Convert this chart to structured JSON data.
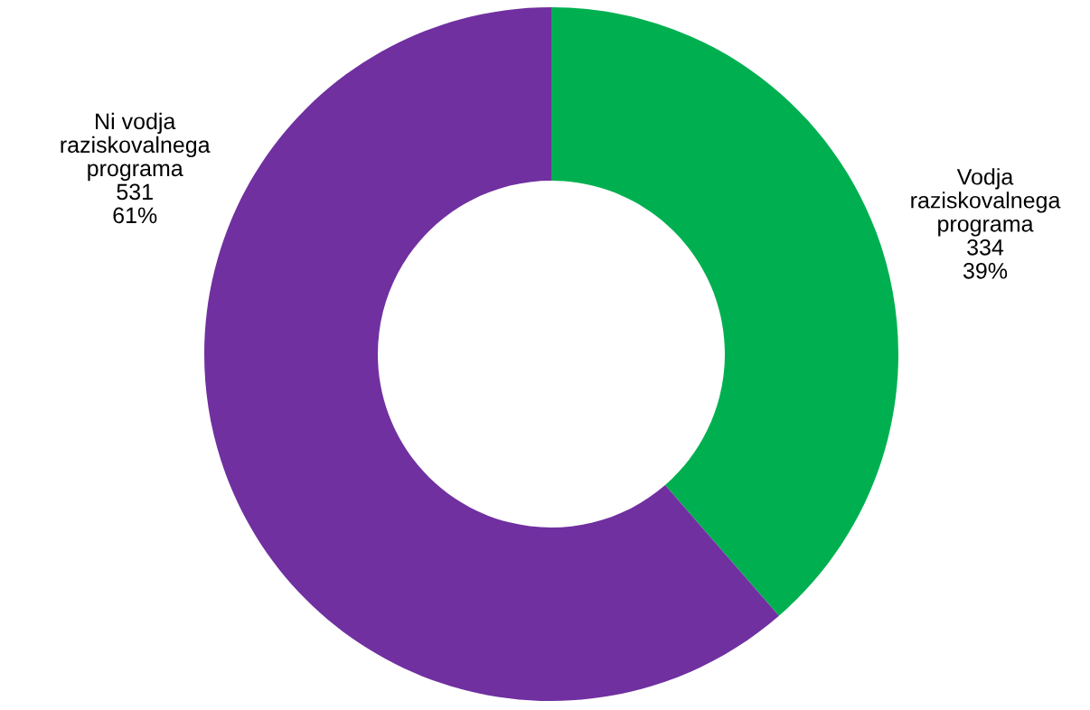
{
  "chart_data": {
    "type": "donut",
    "categories": [
      "Vodja\nraziskovalnega\nprograma",
      "Ni vodja\nraziskovalnega\nprograma"
    ],
    "values": [
      334,
      531
    ],
    "value_labels": [
      "334\n39%",
      "531\n61%"
    ],
    "colors": [
      "#00b050",
      "#7030a0"
    ],
    "legend": false
  }
}
